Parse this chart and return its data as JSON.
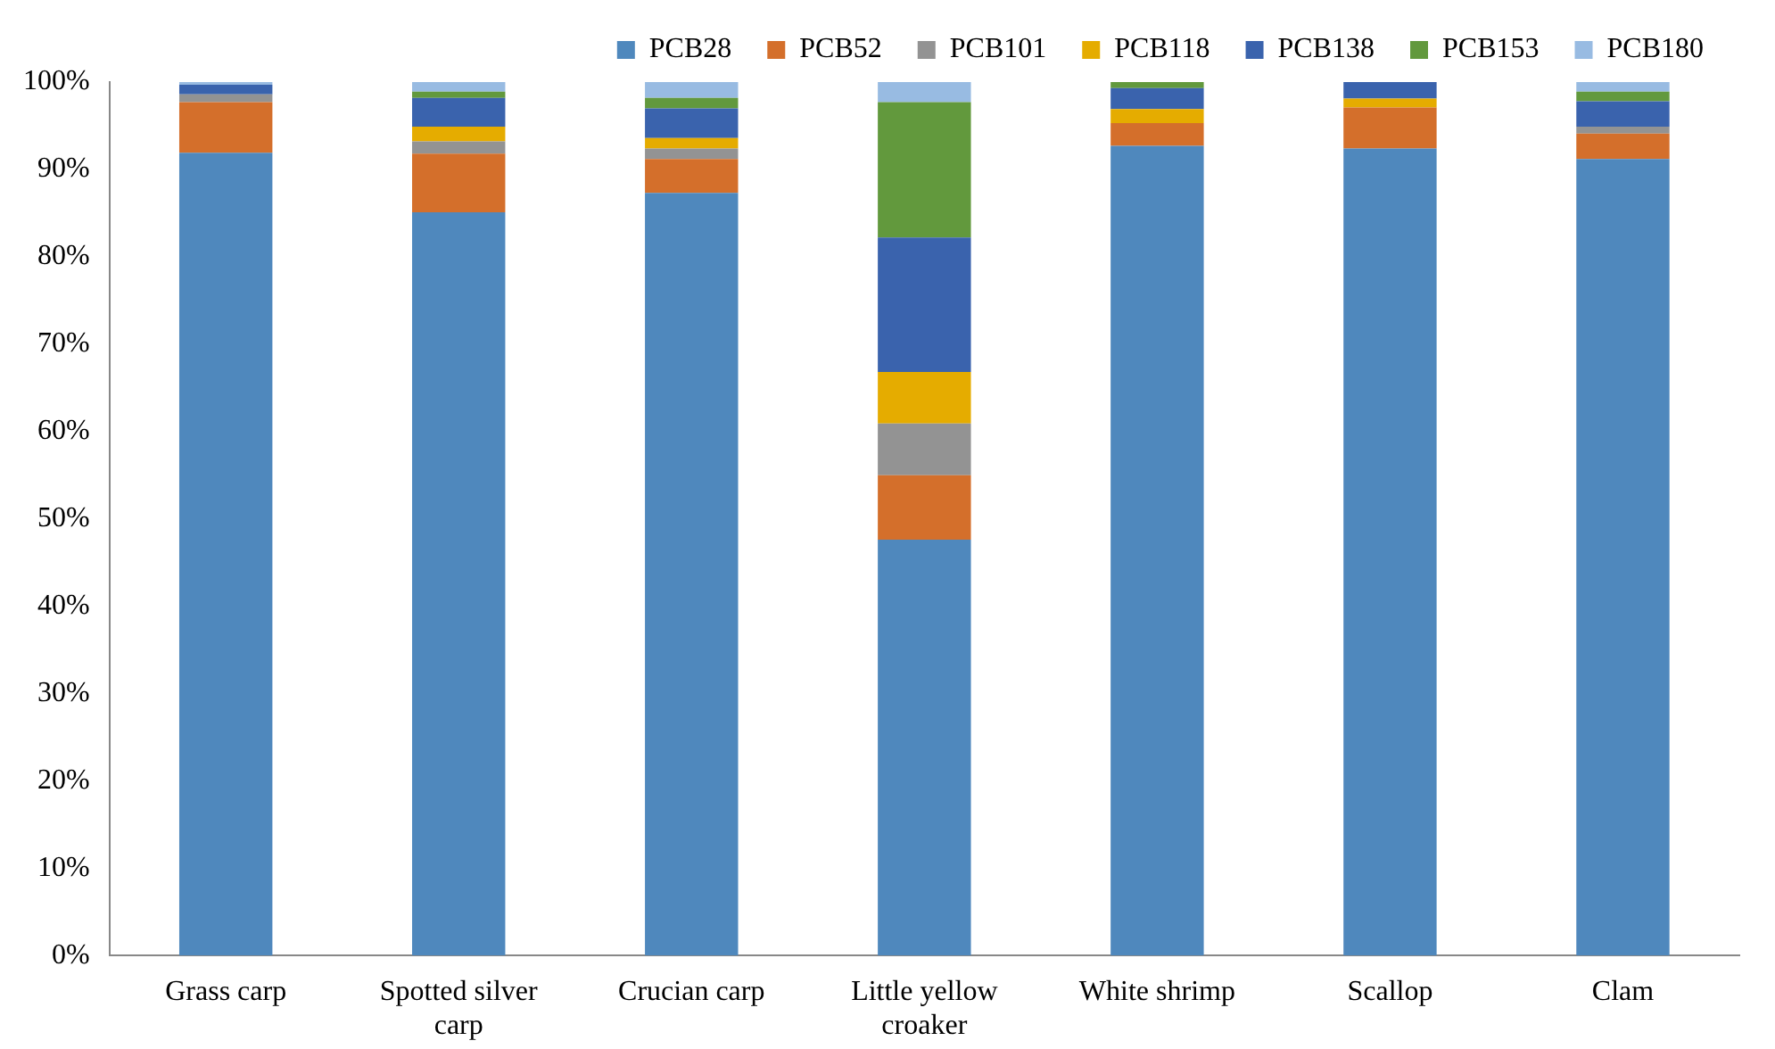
{
  "chart_data": {
    "type": "bar",
    "stacked": true,
    "categories": [
      "Grass carp",
      "Spotted silver carp",
      "Crucian carp",
      "Little yellow croaker",
      "White shrimp",
      "Scallop",
      "Clam"
    ],
    "series": [
      {
        "name": "PCB28",
        "color": "#4f88bd",
        "values": [
          91.9,
          85.1,
          87.3,
          47.6,
          92.7,
          92.4,
          91.2
        ]
      },
      {
        "name": "PCB52",
        "color": "#d46f2b",
        "values": [
          5.8,
          6.7,
          3.9,
          7.4,
          2.6,
          4.7,
          2.9
        ]
      },
      {
        "name": "PCB101",
        "color": "#939393",
        "values": [
          0.9,
          1.4,
          1.2,
          5.9,
          0,
          0,
          0.8
        ]
      },
      {
        "name": "PCB118",
        "color": "#e5ac00",
        "values": [
          0,
          1.7,
          1.2,
          5.9,
          1.6,
          1.0,
          0
        ]
      },
      {
        "name": "PCB138",
        "color": "#3a63ad",
        "values": [
          1.1,
          3.3,
          3.4,
          15.4,
          2.4,
          1.9,
          2.9
        ]
      },
      {
        "name": "PCB153",
        "color": "#62993d",
        "values": [
          0,
          0.7,
          1.2,
          15.5,
          0.7,
          0,
          1.1
        ]
      },
      {
        "name": "PCB180",
        "color": "#98bbe2",
        "values": [
          0.3,
          1.1,
          1.8,
          2.3,
          0,
          0,
          1.1
        ]
      }
    ],
    "ylim": [
      0,
      100
    ],
    "yticks": [
      {
        "value": 0,
        "label": "0%"
      },
      {
        "value": 10,
        "label": "10%"
      },
      {
        "value": 20,
        "label": "20%"
      },
      {
        "value": 30,
        "label": "30%"
      },
      {
        "value": 40,
        "label": "40%"
      },
      {
        "value": 50,
        "label": "50%"
      },
      {
        "value": 60,
        "label": "60%"
      },
      {
        "value": 70,
        "label": "70%"
      },
      {
        "value": 80,
        "label": "80%"
      },
      {
        "value": 90,
        "label": "90%"
      },
      {
        "value": 100,
        "label": "100%"
      }
    ],
    "grid": false,
    "legend": "top right"
  }
}
